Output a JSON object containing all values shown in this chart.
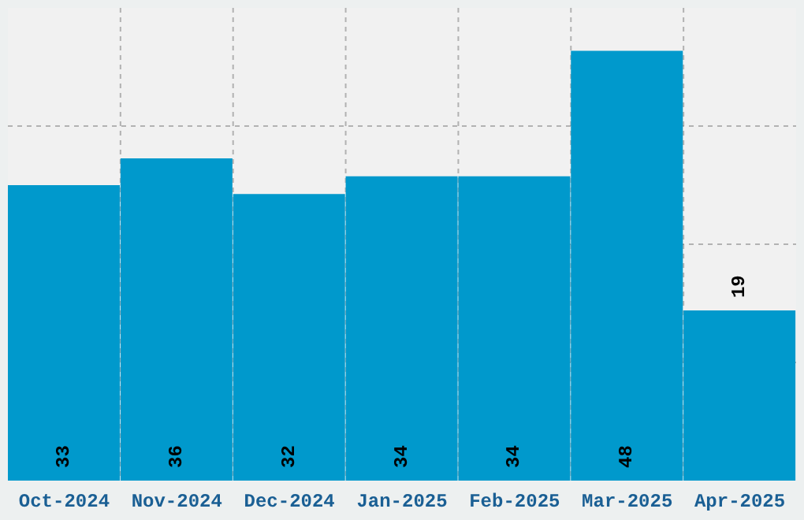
{
  "chart_data": {
    "type": "bar",
    "categories": [
      "Oct-2024",
      "Nov-2024",
      "Dec-2024",
      "Jan-2025",
      "Feb-2025",
      "Mar-2025",
      "Apr-2025"
    ],
    "values": [
      33,
      36,
      32,
      34,
      34,
      48,
      19
    ],
    "color": "#0099cc",
    "ylim": [
      0,
      52.8
    ],
    "grid": true,
    "data_labels": true,
    "tick_labels": "x"
  }
}
